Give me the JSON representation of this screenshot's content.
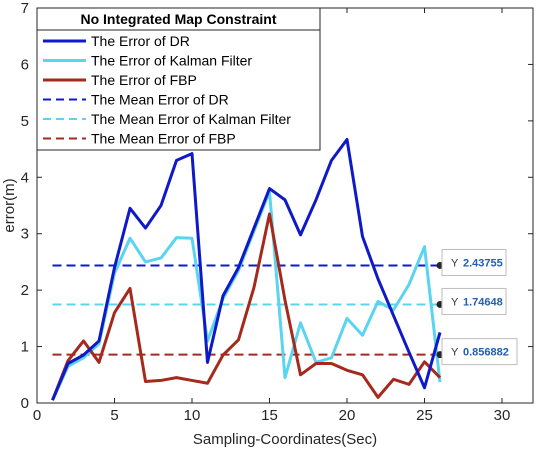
{
  "chart_data": {
    "type": "line",
    "title": "No Integrated Map Constraint",
    "xlabel": "Sampling-Coordinates(Sec)",
    "ylabel": "error(m)",
    "xlim": [
      0,
      32
    ],
    "ylim": [
      0,
      7
    ],
    "xticks": [
      "0",
      "5",
      "10",
      "15",
      "20",
      "25",
      "30"
    ],
    "yticks": [
      "0",
      "1",
      "2",
      "3",
      "4",
      "5",
      "6",
      "7"
    ],
    "grid": false,
    "legend_position": "top-left",
    "x": [
      1,
      2,
      3,
      4,
      5,
      6,
      7,
      8,
      9,
      10,
      11,
      12,
      13,
      14,
      15,
      16,
      17,
      18,
      19,
      20,
      21,
      22,
      23,
      24,
      25,
      26
    ],
    "series": [
      {
        "name": "The Error of DR",
        "color": "#0f19c8",
        "style": "solid",
        "values": [
          0.05,
          0.7,
          0.85,
          1.1,
          2.4,
          3.45,
          3.1,
          3.5,
          4.3,
          4.42,
          0.72,
          1.9,
          2.4,
          3.1,
          3.8,
          3.6,
          2.98,
          3.6,
          4.3,
          4.67,
          2.95,
          2.2,
          1.55,
          0.9,
          0.27,
          1.25
        ]
      },
      {
        "name": "The Error of Kalman Filter",
        "color": "#5ad4f0",
        "style": "solid",
        "values": [
          0.05,
          0.65,
          0.8,
          1.05,
          2.3,
          2.92,
          2.5,
          2.57,
          2.93,
          2.92,
          1.1,
          1.85,
          2.35,
          3.05,
          3.75,
          0.45,
          1.42,
          0.72,
          0.8,
          1.5,
          1.2,
          1.8,
          1.65,
          2.1,
          2.77,
          0.37
        ]
      },
      {
        "name": "The Error of FBP",
        "color": "#a52a1e",
        "style": "solid",
        "values": [
          0.05,
          0.75,
          1.1,
          0.72,
          1.6,
          2.03,
          0.38,
          0.4,
          0.45,
          0.4,
          0.35,
          0.85,
          1.12,
          2.05,
          3.35,
          1.82,
          0.5,
          0.7,
          0.7,
          0.58,
          0.5,
          0.1,
          0.42,
          0.33,
          0.73,
          0.45
        ]
      },
      {
        "name": "The Mean Error of DR",
        "color": "#0f19c8",
        "style": "dashed",
        "constant": 2.43755,
        "x_range": [
          1,
          26
        ]
      },
      {
        "name": "The Mean Error of Kalman Filter",
        "color": "#5ad4f0",
        "style": "dashed",
        "constant": 1.74648,
        "x_range": [
          1,
          26
        ]
      },
      {
        "name": "The Mean Error of FBP",
        "color": "#a52a1e",
        "style": "dashed",
        "constant": 0.856882,
        "x_range": [
          1,
          26
        ]
      }
    ],
    "datatips": [
      {
        "label": "Y",
        "value": "2.43755",
        "y": 2.43755,
        "x": 26
      },
      {
        "label": "Y",
        "value": "1.74648",
        "y": 1.74648,
        "x": 26
      },
      {
        "label": "Y",
        "value": "0.856882",
        "y": 0.856882,
        "x": 26
      }
    ]
  }
}
